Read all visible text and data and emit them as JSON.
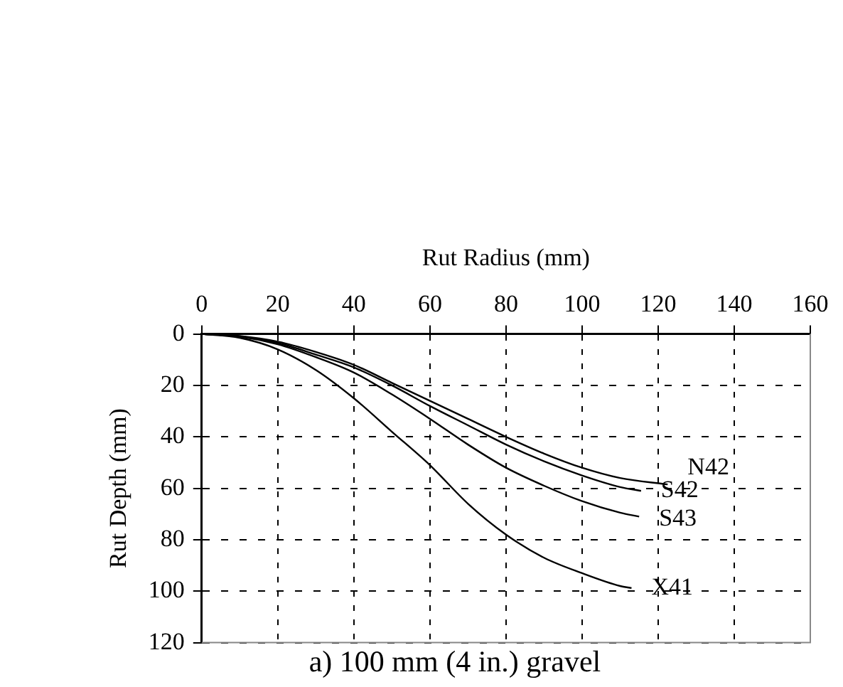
{
  "chart_data": {
    "type": "line",
    "title": "a) 100 mm (4 in.) gravel",
    "xlabel": "Rut Radius (mm)",
    "ylabel": "Rut Depth (mm)",
    "xlim": [
      0,
      160
    ],
    "xticks": [
      0,
      20,
      40,
      60,
      80,
      100,
      120,
      140,
      160
    ],
    "ylim": [
      120,
      0
    ],
    "yticks": [
      0,
      20,
      40,
      60,
      80,
      100,
      120
    ],
    "grid": true,
    "legend": false,
    "marker": "none",
    "line_style": "solid",
    "series": [
      {
        "name": "N42",
        "color": "#000000",
        "x": [
          0,
          10,
          20,
          30,
          40,
          50,
          60,
          70,
          80,
          90,
          100,
          110,
          122.5
        ],
        "values": [
          0,
          0.8,
          3,
          7,
          12,
          19,
          26,
          33,
          40,
          46.5,
          52,
          56,
          58.5
        ]
      },
      {
        "name": "S42",
        "color": "#000000",
        "x": [
          0,
          10,
          20,
          30,
          40,
          50,
          60,
          70,
          80,
          90,
          100,
          110,
          115.5
        ],
        "values": [
          0,
          0.9,
          3.5,
          8,
          13,
          20,
          28,
          35.5,
          43,
          49.5,
          55,
          59.5,
          61
        ]
      },
      {
        "name": "S43",
        "color": "#000000",
        "x": [
          0,
          10,
          20,
          30,
          40,
          50,
          60,
          70,
          80,
          90,
          100,
          110,
          115
        ],
        "values": [
          0,
          1,
          4,
          9,
          15,
          23.5,
          33,
          43,
          52,
          59,
          65,
          69.5,
          71
        ]
      },
      {
        "name": "X41",
        "color": "#000000",
        "x": [
          0,
          10,
          20,
          30,
          40,
          50,
          60,
          70,
          80,
          90,
          100,
          110,
          113
        ],
        "values": [
          0,
          1.5,
          6,
          14,
          25,
          38,
          51,
          66,
          78,
          87,
          93,
          98,
          98.8
        ]
      }
    ]
  }
}
